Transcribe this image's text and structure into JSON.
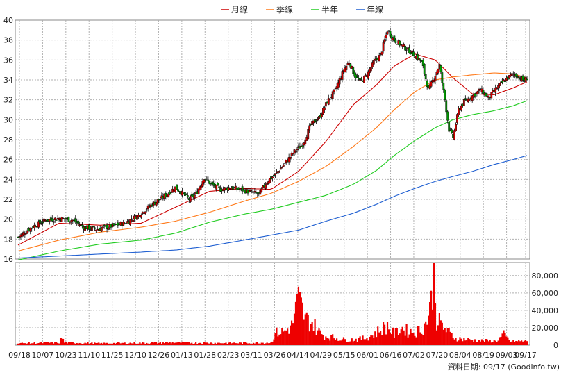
{
  "legend": [
    {
      "label": "月線",
      "color": "#cc0000"
    },
    {
      "label": "季線",
      "color": "#ff7a1a"
    },
    {
      "label": "半年",
      "color": "#22cc22"
    },
    {
      "label": "年線",
      "color": "#1f5fd1"
    }
  ],
  "source_text": "資料日期: 09/17   (Goodinfo.tw)",
  "chart_data": [
    {
      "type": "candlestick",
      "title": "",
      "ylim": [
        16,
        40
      ],
      "y_ticks": [
        16,
        18,
        20,
        22,
        24,
        26,
        28,
        30,
        32,
        34,
        36,
        38,
        40
      ],
      "x_tick_labels": [
        "09/18",
        "10/07",
        "10/23",
        "11/10",
        "11/25",
        "12/10",
        "12/26",
        "01/13",
        "01/28",
        "02/23",
        "03/11",
        "03/26",
        "04/14",
        "04/29",
        "05/15",
        "06/01",
        "06/16",
        "07/02",
        "07/20",
        "08/04",
        "08/19",
        "09/03",
        "09/17"
      ],
      "grid": true,
      "legend_position": "top-center",
      "close_anchors": [
        [
          0,
          18.2
        ],
        [
          10,
          19.2
        ],
        [
          20,
          19.9
        ],
        [
          30,
          20.1
        ],
        [
          40,
          19.9
        ],
        [
          48,
          19.2
        ],
        [
          58,
          19.0
        ],
        [
          68,
          19.3
        ],
        [
          78,
          19.6
        ],
        [
          88,
          20.4
        ],
        [
          98,
          21.5
        ],
        [
          108,
          22.4
        ],
        [
          115,
          23.2
        ],
        [
          120,
          22.6
        ],
        [
          125,
          22.0
        ],
        [
          130,
          22.5
        ],
        [
          136,
          24.2
        ],
        [
          142,
          23.4
        ],
        [
          148,
          23.0
        ],
        [
          155,
          23.2
        ],
        [
          162,
          23.0
        ],
        [
          168,
          22.8
        ],
        [
          176,
          22.5
        ],
        [
          182,
          23.8
        ],
        [
          188,
          24.5
        ],
        [
          195,
          25.6
        ],
        [
          202,
          26.8
        ],
        [
          208,
          27.5
        ],
        [
          214,
          29.5
        ],
        [
          220,
          30.2
        ],
        [
          226,
          31.8
        ],
        [
          232,
          33.0
        ],
        [
          238,
          35.0
        ],
        [
          242,
          35.8
        ],
        [
          246,
          34.5
        ],
        [
          250,
          33.8
        ],
        [
          255,
          34.5
        ],
        [
          260,
          35.8
        ],
        [
          265,
          36.5
        ],
        [
          270,
          39.0
        ],
        [
          275,
          38.0
        ],
        [
          280,
          37.5
        ],
        [
          285,
          37.0
        ],
        [
          290,
          36.5
        ],
        [
          295,
          35.8
        ],
        [
          300,
          33.0
        ],
        [
          304,
          34.2
        ],
        [
          308,
          35.5
        ],
        [
          312,
          32.0
        ],
        [
          315,
          29.0
        ],
        [
          318,
          28.2
        ],
        [
          322,
          31.0
        ],
        [
          326,
          31.8
        ],
        [
          332,
          32.4
        ],
        [
          338,
          33.0
        ],
        [
          344,
          32.2
        ],
        [
          350,
          33.2
        ],
        [
          356,
          34.0
        ],
        [
          362,
          34.6
        ],
        [
          366,
          34.3
        ],
        [
          370,
          33.9
        ],
        [
          372,
          34.2
        ]
      ],
      "series": [
        {
          "name": "月線",
          "color": "#cc0000",
          "points": [
            [
              0,
              17.4
            ],
            [
              30,
              19.6
            ],
            [
              60,
              19.4
            ],
            [
              90,
              19.6
            ],
            [
              115,
              21.2
            ],
            [
              140,
              22.8
            ],
            [
              165,
              23.1
            ],
            [
              185,
              23.0
            ],
            [
              205,
              24.8
            ],
            [
              225,
              27.8
            ],
            [
              245,
              31.5
            ],
            [
              262,
              33.5
            ],
            [
              275,
              35.4
            ],
            [
              290,
              36.6
            ],
            [
              305,
              36.0
            ],
            [
              318,
              34.2
            ],
            [
              332,
              32.6
            ],
            [
              348,
              32.5
            ],
            [
              362,
              33.2
            ],
            [
              372,
              33.8
            ]
          ]
        },
        {
          "name": "季線",
          "color": "#ff7a1a",
          "points": [
            [
              0,
              16.8
            ],
            [
              30,
              17.9
            ],
            [
              60,
              18.7
            ],
            [
              90,
              19.2
            ],
            [
              115,
              19.8
            ],
            [
              140,
              20.7
            ],
            [
              165,
              21.8
            ],
            [
              185,
              22.6
            ],
            [
              205,
              23.8
            ],
            [
              225,
              25.3
            ],
            [
              245,
              27.3
            ],
            [
              262,
              29.2
            ],
            [
              275,
              31.0
            ],
            [
              290,
              32.8
            ],
            [
              305,
              34.0
            ],
            [
              318,
              34.3
            ],
            [
              332,
              34.5
            ],
            [
              348,
              34.7
            ],
            [
              362,
              34.6
            ],
            [
              372,
              34.2
            ]
          ]
        },
        {
          "name": "半年",
          "color": "#22cc22",
          "points": [
            [
              0,
              15.9
            ],
            [
              30,
              16.8
            ],
            [
              60,
              17.5
            ],
            [
              90,
              17.9
            ],
            [
              115,
              18.6
            ],
            [
              140,
              19.7
            ],
            [
              165,
              20.5
            ],
            [
              185,
              21.0
            ],
            [
              205,
              21.7
            ],
            [
              225,
              22.4
            ],
            [
              245,
              23.5
            ],
            [
              262,
              24.9
            ],
            [
              275,
              26.4
            ],
            [
              290,
              27.9
            ],
            [
              305,
              29.2
            ],
            [
              318,
              30.0
            ],
            [
              332,
              30.5
            ],
            [
              348,
              30.9
            ],
            [
              362,
              31.4
            ],
            [
              372,
              31.9
            ]
          ]
        },
        {
          "name": "年線",
          "color": "#1f5fd1",
          "points": [
            [
              0,
              16.1
            ],
            [
              30,
              16.3
            ],
            [
              60,
              16.5
            ],
            [
              90,
              16.7
            ],
            [
              115,
              16.9
            ],
            [
              140,
              17.3
            ],
            [
              165,
              17.9
            ],
            [
              185,
              18.4
            ],
            [
              205,
              18.9
            ],
            [
              225,
              19.8
            ],
            [
              245,
              20.6
            ],
            [
              262,
              21.5
            ],
            [
              275,
              22.3
            ],
            [
              290,
              23.1
            ],
            [
              305,
              23.8
            ],
            [
              318,
              24.3
            ],
            [
              332,
              24.8
            ],
            [
              348,
              25.5
            ],
            [
              362,
              26.0
            ],
            [
              372,
              26.4
            ]
          ]
        }
      ]
    },
    {
      "type": "bar",
      "title": "",
      "ylim": [
        0,
        95000
      ],
      "y_tick_labels": [
        "0",
        "20,000",
        "40,000",
        "60,000",
        "80,000"
      ],
      "y_ticks": [
        0,
        20000,
        40000,
        60000,
        80000
      ],
      "color": "#ee0000",
      "grid": true,
      "volume_anchors": [
        [
          0,
          2000
        ],
        [
          30,
          3000
        ],
        [
          32,
          9000
        ],
        [
          34,
          3000
        ],
        [
          60,
          2000
        ],
        [
          90,
          2500
        ],
        [
          115,
          3000
        ],
        [
          140,
          2500
        ],
        [
          165,
          2500
        ],
        [
          185,
          3000
        ],
        [
          188,
          14000
        ],
        [
          195,
          16000
        ],
        [
          200,
          22000
        ],
        [
          203,
          40000
        ],
        [
          205,
          52000
        ],
        [
          207,
          44000
        ],
        [
          210,
          30000
        ],
        [
          215,
          26000
        ],
        [
          220,
          15000
        ],
        [
          225,
          10000
        ],
        [
          230,
          9000
        ],
        [
          240,
          6000
        ],
        [
          250,
          7000
        ],
        [
          255,
          9000
        ],
        [
          260,
          12000
        ],
        [
          265,
          18000
        ],
        [
          270,
          22000
        ],
        [
          275,
          12000
        ],
        [
          280,
          20000
        ],
        [
          285,
          16000
        ],
        [
          290,
          15000
        ],
        [
          295,
          19000
        ],
        [
          298,
          25000
        ],
        [
          300,
          38000
        ],
        [
          302,
          48000
        ],
        [
          304,
          90000
        ],
        [
          306,
          30000
        ],
        [
          310,
          22000
        ],
        [
          315,
          14000
        ],
        [
          320,
          8000
        ],
        [
          330,
          6000
        ],
        [
          340,
          5000
        ],
        [
          350,
          5000
        ],
        [
          355,
          12000
        ],
        [
          360,
          4000
        ],
        [
          372,
          5000
        ]
      ]
    }
  ]
}
